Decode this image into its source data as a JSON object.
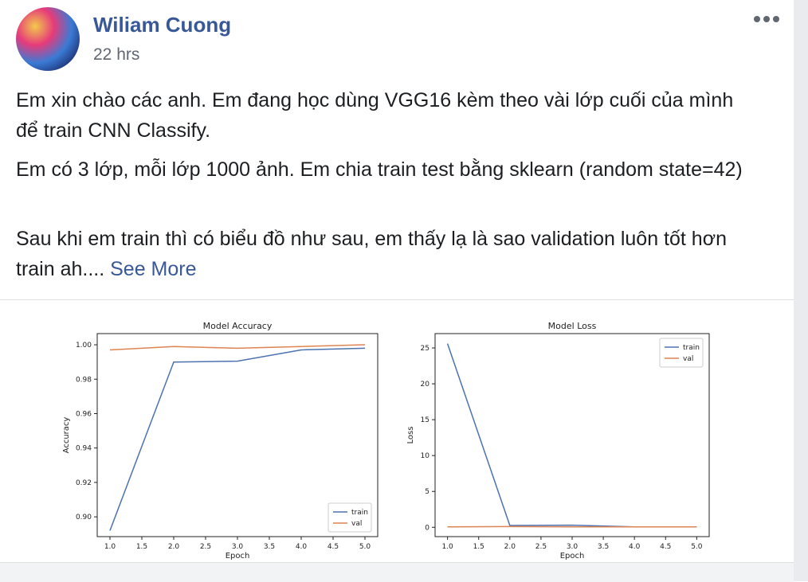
{
  "post": {
    "author": "Wiliam Cuong",
    "time": "22 hrs",
    "paragraphs": [
      "Em xin chào các anh. Em đang học dùng VGG16 kèm theo vài lớp cuối của mình để train CNN Classify.",
      "Em có 3 lớp, mỗi lớp 1000 ảnh. Em chia train test bằng sklearn (random state=42)",
      "Sau khi em train thì có biểu đồ như sau, em thấy lạ là sao validation luôn tốt hơn train ah...."
    ],
    "see_more": "See More",
    "more_icon": "ellipsis-icon"
  },
  "colors": {
    "link": "#385898",
    "train": "#4c72b0",
    "val": "#dd8452"
  },
  "chart_data": [
    {
      "type": "line",
      "title": "Model Accuracy",
      "xlabel": "Epoch",
      "ylabel": "Accuracy",
      "x": [
        1.0,
        2.0,
        3.0,
        4.0,
        5.0
      ],
      "xticks": [
        "1.0",
        "1.5",
        "2.0",
        "2.5",
        "3.0",
        "3.5",
        "4.0",
        "4.5",
        "5.0"
      ],
      "yticks": [
        "0.90",
        "0.92",
        "0.94",
        "0.96",
        "0.98",
        "1.00"
      ],
      "xlim": [
        0.8,
        5.2
      ],
      "ylim": [
        0.8885,
        1.0065
      ],
      "legend": "lower-right",
      "series": [
        {
          "name": "train",
          "values": [
            0.892,
            0.99,
            0.9905,
            0.997,
            0.998
          ]
        },
        {
          "name": "val",
          "values": [
            0.997,
            0.999,
            0.998,
            0.999,
            1.0
          ]
        }
      ]
    },
    {
      "type": "line",
      "title": "Model Loss",
      "xlabel": "Epoch",
      "ylabel": "Loss",
      "x": [
        1.0,
        2.0,
        3.0,
        4.0,
        5.0
      ],
      "xticks": [
        "1.0",
        "1.5",
        "2.0",
        "2.5",
        "3.0",
        "3.5",
        "4.0",
        "4.5",
        "5.0"
      ],
      "yticks": [
        "0",
        "5",
        "10",
        "15",
        "20",
        "25"
      ],
      "xlim": [
        0.8,
        5.2
      ],
      "ylim": [
        -1.3,
        27.0
      ],
      "legend": "upper-right",
      "series": [
        {
          "name": "train",
          "values": [
            25.6,
            0.25,
            0.3,
            0.05,
            0.05
          ]
        },
        {
          "name": "val",
          "values": [
            0.05,
            0.1,
            0.05,
            0.05,
            0.05
          ]
        }
      ]
    }
  ]
}
